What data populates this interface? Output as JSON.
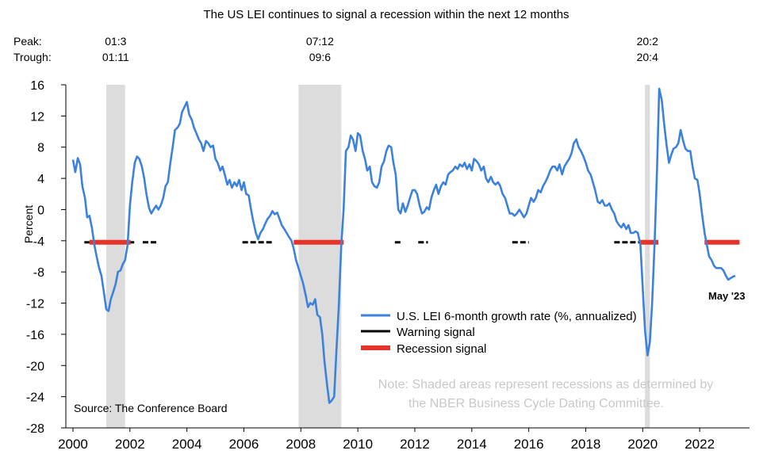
{
  "chart_data": {
    "type": "line",
    "title": "The US LEI continues to signal a recession within the next 12 months",
    "ylabel": "Percent",
    "xlabel": "",
    "xlim": [
      1999.75,
      2023.75
    ],
    "ylim": [
      -28,
      16
    ],
    "yticks": [
      16,
      12,
      8,
      4,
      0,
      -4,
      -8,
      -12,
      -16,
      -20,
      -24,
      -28
    ],
    "xticks": [
      2000,
      2002,
      2004,
      2006,
      2008,
      2010,
      2012,
      2014,
      2016,
      2018,
      2020,
      2022
    ],
    "grid": false,
    "legend_position": "bottom-center",
    "peak_trough_labels": {
      "peak": "Peak:",
      "trough": "Trough:"
    },
    "recessions": [
      {
        "start": 2001.17,
        "end": 2001.83,
        "peak_label": "01:3",
        "trough_label": "01:11"
      },
      {
        "start": 2007.92,
        "end": 2009.42,
        "peak_label": "07:12",
        "trough_label": "09:6"
      },
      {
        "start": 2020.08,
        "end": 2020.25,
        "peak_label": "20:2",
        "trough_label": "20:4"
      }
    ],
    "series": [
      {
        "name": "U.S. LEI 6-month growth rate (%, annualized)",
        "color": "#3c82dc",
        "points": [
          [
            2000.0,
            6.4
          ],
          [
            2000.08,
            4.8
          ],
          [
            2000.17,
            6.6
          ],
          [
            2000.25,
            5.8
          ],
          [
            2000.33,
            3.0
          ],
          [
            2000.42,
            1.5
          ],
          [
            2000.5,
            -1.0
          ],
          [
            2000.58,
            -0.8
          ],
          [
            2000.67,
            -2.4
          ],
          [
            2000.75,
            -4.5
          ],
          [
            2000.83,
            -6.0
          ],
          [
            2000.92,
            -7.5
          ],
          [
            2001.0,
            -8.5
          ],
          [
            2001.08,
            -10.5
          ],
          [
            2001.17,
            -12.8
          ],
          [
            2001.25,
            -13.0
          ],
          [
            2001.33,
            -11.5
          ],
          [
            2001.42,
            -10.5
          ],
          [
            2001.5,
            -9.5
          ],
          [
            2001.58,
            -8.0
          ],
          [
            2001.67,
            -7.8
          ],
          [
            2001.75,
            -7.0
          ],
          [
            2001.83,
            -6.5
          ],
          [
            2001.92,
            -4.5
          ],
          [
            2002.0,
            0.5
          ],
          [
            2002.08,
            3.5
          ],
          [
            2002.17,
            6.0
          ],
          [
            2002.25,
            6.8
          ],
          [
            2002.33,
            6.5
          ],
          [
            2002.42,
            5.5
          ],
          [
            2002.5,
            4.0
          ],
          [
            2002.58,
            2.0
          ],
          [
            2002.67,
            0.2
          ],
          [
            2002.75,
            -0.5
          ],
          [
            2002.83,
            0.0
          ],
          [
            2002.92,
            0.5
          ],
          [
            2003.0,
            0.0
          ],
          [
            2003.08,
            0.5
          ],
          [
            2003.17,
            1.5
          ],
          [
            2003.25,
            3.0
          ],
          [
            2003.33,
            3.5
          ],
          [
            2003.42,
            6.0
          ],
          [
            2003.5,
            8.0
          ],
          [
            2003.58,
            10.2
          ],
          [
            2003.67,
            10.5
          ],
          [
            2003.75,
            11.0
          ],
          [
            2003.83,
            12.5
          ],
          [
            2003.92,
            13.2
          ],
          [
            2004.0,
            13.8
          ],
          [
            2004.08,
            12.2
          ],
          [
            2004.17,
            11.5
          ],
          [
            2004.25,
            10.5
          ],
          [
            2004.33,
            9.8
          ],
          [
            2004.42,
            9.0
          ],
          [
            2004.5,
            8.5
          ],
          [
            2004.58,
            7.5
          ],
          [
            2004.67,
            8.8
          ],
          [
            2004.75,
            8.5
          ],
          [
            2004.83,
            8.0
          ],
          [
            2004.92,
            8.2
          ],
          [
            2005.0,
            6.5
          ],
          [
            2005.08,
            6.0
          ],
          [
            2005.17,
            5.0
          ],
          [
            2005.25,
            5.5
          ],
          [
            2005.33,
            4.5
          ],
          [
            2005.42,
            3.2
          ],
          [
            2005.5,
            3.8
          ],
          [
            2005.58,
            2.8
          ],
          [
            2005.67,
            3.5
          ],
          [
            2005.75,
            3.0
          ],
          [
            2005.83,
            3.8
          ],
          [
            2005.92,
            2.5
          ],
          [
            2006.0,
            3.5
          ],
          [
            2006.08,
            2.0
          ],
          [
            2006.17,
            1.8
          ],
          [
            2006.25,
            0.0
          ],
          [
            2006.33,
            -1.5
          ],
          [
            2006.42,
            -3.0
          ],
          [
            2006.5,
            -3.8
          ],
          [
            2006.58,
            -3.0
          ],
          [
            2006.67,
            -2.5
          ],
          [
            2006.75,
            -1.8
          ],
          [
            2006.83,
            -1.2
          ],
          [
            2006.92,
            -0.8
          ],
          [
            2007.0,
            -0.2
          ],
          [
            2007.08,
            -0.6
          ],
          [
            2007.17,
            -0.4
          ],
          [
            2007.25,
            -1.2
          ],
          [
            2007.33,
            -2.0
          ],
          [
            2007.42,
            -2.5
          ],
          [
            2007.5,
            -3.0
          ],
          [
            2007.58,
            -3.5
          ],
          [
            2007.67,
            -4.0
          ],
          [
            2007.75,
            -5.0
          ],
          [
            2007.83,
            -6.5
          ],
          [
            2007.92,
            -7.5
          ],
          [
            2008.0,
            -8.5
          ],
          [
            2008.08,
            -9.5
          ],
          [
            2008.17,
            -11.0
          ],
          [
            2008.25,
            -12.5
          ],
          [
            2008.33,
            -12.0
          ],
          [
            2008.42,
            -12.2
          ],
          [
            2008.5,
            -11.5
          ],
          [
            2008.58,
            -13.5
          ],
          [
            2008.67,
            -13.8
          ],
          [
            2008.75,
            -16.0
          ],
          [
            2008.83,
            -19.5
          ],
          [
            2008.92,
            -22.5
          ],
          [
            2009.0,
            -24.8
          ],
          [
            2009.08,
            -24.5
          ],
          [
            2009.17,
            -24.0
          ],
          [
            2009.25,
            -18.0
          ],
          [
            2009.33,
            -12.5
          ],
          [
            2009.42,
            -4.5
          ],
          [
            2009.5,
            0.0
          ],
          [
            2009.58,
            7.5
          ],
          [
            2009.67,
            8.0
          ],
          [
            2009.75,
            9.5
          ],
          [
            2009.83,
            9.0
          ],
          [
            2009.92,
            7.5
          ],
          [
            2010.0,
            9.8
          ],
          [
            2010.08,
            9.5
          ],
          [
            2010.17,
            7.5
          ],
          [
            2010.25,
            6.5
          ],
          [
            2010.33,
            5.0
          ],
          [
            2010.42,
            5.5
          ],
          [
            2010.5,
            3.5
          ],
          [
            2010.58,
            3.0
          ],
          [
            2010.67,
            2.8
          ],
          [
            2010.75,
            3.5
          ],
          [
            2010.83,
            5.5
          ],
          [
            2010.92,
            6.2
          ],
          [
            2011.0,
            7.5
          ],
          [
            2011.08,
            8.2
          ],
          [
            2011.17,
            8.0
          ],
          [
            2011.25,
            6.0
          ],
          [
            2011.33,
            4.5
          ],
          [
            2011.42,
            0.0
          ],
          [
            2011.5,
            -0.5
          ],
          [
            2011.58,
            0.8
          ],
          [
            2011.67,
            -0.3
          ],
          [
            2011.75,
            0.5
          ],
          [
            2011.83,
            1.5
          ],
          [
            2011.92,
            2.5
          ],
          [
            2012.0,
            2.5
          ],
          [
            2012.08,
            2.0
          ],
          [
            2012.17,
            0.5
          ],
          [
            2012.25,
            -0.5
          ],
          [
            2012.33,
            -0.3
          ],
          [
            2012.42,
            0.3
          ],
          [
            2012.5,
            0.0
          ],
          [
            2012.58,
            1.5
          ],
          [
            2012.67,
            2.5
          ],
          [
            2012.75,
            3.2
          ],
          [
            2012.83,
            2.0
          ],
          [
            2012.92,
            3.0
          ],
          [
            2013.0,
            3.5
          ],
          [
            2013.08,
            3.2
          ],
          [
            2013.17,
            4.5
          ],
          [
            2013.25,
            4.8
          ],
          [
            2013.33,
            5.0
          ],
          [
            2013.42,
            5.5
          ],
          [
            2013.5,
            5.2
          ],
          [
            2013.58,
            5.8
          ],
          [
            2013.67,
            5.5
          ],
          [
            2013.75,
            6.0
          ],
          [
            2013.83,
            5.2
          ],
          [
            2013.92,
            5.8
          ],
          [
            2014.0,
            5.0
          ],
          [
            2014.08,
            6.5
          ],
          [
            2014.17,
            6.2
          ],
          [
            2014.25,
            5.8
          ],
          [
            2014.33,
            5.0
          ],
          [
            2014.42,
            5.5
          ],
          [
            2014.5,
            4.0
          ],
          [
            2014.58,
            3.5
          ],
          [
            2014.67,
            4.2
          ],
          [
            2014.75,
            3.5
          ],
          [
            2014.83,
            3.2
          ],
          [
            2014.92,
            3.5
          ],
          [
            2015.0,
            3.0
          ],
          [
            2015.08,
            2.0
          ],
          [
            2015.17,
            1.5
          ],
          [
            2015.25,
            0.5
          ],
          [
            2015.33,
            -0.5
          ],
          [
            2015.42,
            -0.5
          ],
          [
            2015.5,
            -0.8
          ],
          [
            2015.58,
            -0.5
          ],
          [
            2015.67,
            0.0
          ],
          [
            2015.75,
            -0.5
          ],
          [
            2015.83,
            -1.0
          ],
          [
            2015.92,
            -0.5
          ],
          [
            2016.0,
            0.5
          ],
          [
            2016.08,
            1.5
          ],
          [
            2016.17,
            1.0
          ],
          [
            2016.25,
            1.5
          ],
          [
            2016.33,
            2.5
          ],
          [
            2016.42,
            2.2
          ],
          [
            2016.5,
            3.0
          ],
          [
            2016.58,
            3.5
          ],
          [
            2016.67,
            4.2
          ],
          [
            2016.75,
            5.0
          ],
          [
            2016.83,
            5.5
          ],
          [
            2016.92,
            5.5
          ],
          [
            2017.0,
            5.0
          ],
          [
            2017.08,
            5.8
          ],
          [
            2017.17,
            4.5
          ],
          [
            2017.25,
            5.5
          ],
          [
            2017.33,
            6.0
          ],
          [
            2017.42,
            6.5
          ],
          [
            2017.5,
            7.2
          ],
          [
            2017.58,
            8.5
          ],
          [
            2017.67,
            9.0
          ],
          [
            2017.75,
            8.0
          ],
          [
            2017.83,
            7.5
          ],
          [
            2017.92,
            6.8
          ],
          [
            2018.0,
            6.0
          ],
          [
            2018.08,
            5.0
          ],
          [
            2018.17,
            4.5
          ],
          [
            2018.25,
            3.5
          ],
          [
            2018.33,
            2.5
          ],
          [
            2018.42,
            1.0
          ],
          [
            2018.5,
            0.8
          ],
          [
            2018.58,
            1.2
          ],
          [
            2018.67,
            0.5
          ],
          [
            2018.75,
            0.5
          ],
          [
            2018.83,
            0.8
          ],
          [
            2018.92,
            0.0
          ],
          [
            2019.0,
            -0.5
          ],
          [
            2019.08,
            -1.5
          ],
          [
            2019.17,
            -2.0
          ],
          [
            2019.25,
            -2.3
          ],
          [
            2019.33,
            -1.8
          ],
          [
            2019.42,
            -2.5
          ],
          [
            2019.5,
            -2.0
          ],
          [
            2019.58,
            -3.0
          ],
          [
            2019.67,
            -3.0
          ],
          [
            2019.75,
            -2.8
          ],
          [
            2019.83,
            -3.0
          ],
          [
            2019.92,
            -4.5
          ],
          [
            2020.0,
            -10.0
          ],
          [
            2020.08,
            -15.5
          ],
          [
            2020.17,
            -18.7
          ],
          [
            2020.25,
            -17.0
          ],
          [
            2020.33,
            -12.0
          ],
          [
            2020.42,
            -4.0
          ],
          [
            2020.5,
            5.0
          ],
          [
            2020.58,
            15.5
          ],
          [
            2020.67,
            14.0
          ],
          [
            2020.75,
            11.0
          ],
          [
            2020.83,
            8.5
          ],
          [
            2020.92,
            6.0
          ],
          [
            2021.0,
            7.0
          ],
          [
            2021.08,
            7.8
          ],
          [
            2021.17,
            8.0
          ],
          [
            2021.25,
            8.5
          ],
          [
            2021.33,
            10.2
          ],
          [
            2021.42,
            8.8
          ],
          [
            2021.5,
            7.8
          ],
          [
            2021.58,
            7.5
          ],
          [
            2021.67,
            7.5
          ],
          [
            2021.75,
            5.5
          ],
          [
            2021.83,
            4.0
          ],
          [
            2021.92,
            3.8
          ],
          [
            2022.0,
            2.0
          ],
          [
            2022.08,
            -0.5
          ],
          [
            2022.17,
            -3.0
          ],
          [
            2022.25,
            -4.5
          ],
          [
            2022.33,
            -6.0
          ],
          [
            2022.42,
            -6.5
          ],
          [
            2022.5,
            -7.2
          ],
          [
            2022.58,
            -7.5
          ],
          [
            2022.67,
            -7.5
          ],
          [
            2022.75,
            -7.5
          ],
          [
            2022.83,
            -7.8
          ],
          [
            2022.92,
            -8.5
          ],
          [
            2023.0,
            -9.0
          ],
          [
            2023.08,
            -8.8
          ],
          [
            2023.17,
            -8.6
          ],
          [
            2023.25,
            -8.5
          ]
        ]
      }
    ],
    "signal_level": -4.2,
    "warning_signal": {
      "name": "Warning signal",
      "color": "#000000",
      "periods": [
        [
          2000.4,
          2000.58
        ],
        [
          2002.02,
          2002.15
        ],
        [
          2002.45,
          2003.0
        ],
        [
          2005.95,
          2007.0
        ],
        [
          2011.3,
          2011.52
        ],
        [
          2012.12,
          2012.46
        ],
        [
          2015.42,
          2016.0
        ],
        [
          2019.0,
          2019.88
        ]
      ]
    },
    "recession_signal": {
      "name": "Recession signal",
      "color": "#e8332a",
      "periods": [
        [
          2000.58,
          2002.02
        ],
        [
          2007.75,
          2009.5
        ],
        [
          2019.88,
          2020.55
        ],
        [
          2022.17,
          2023.4
        ]
      ]
    },
    "annotations": {
      "last_point": "May '23",
      "source": "Source: The Conference Board",
      "note_line1": "Note: Shaded areas represent recessions as determined by",
      "note_line2": "the NBER Business Cycle Dating Committee."
    }
  }
}
